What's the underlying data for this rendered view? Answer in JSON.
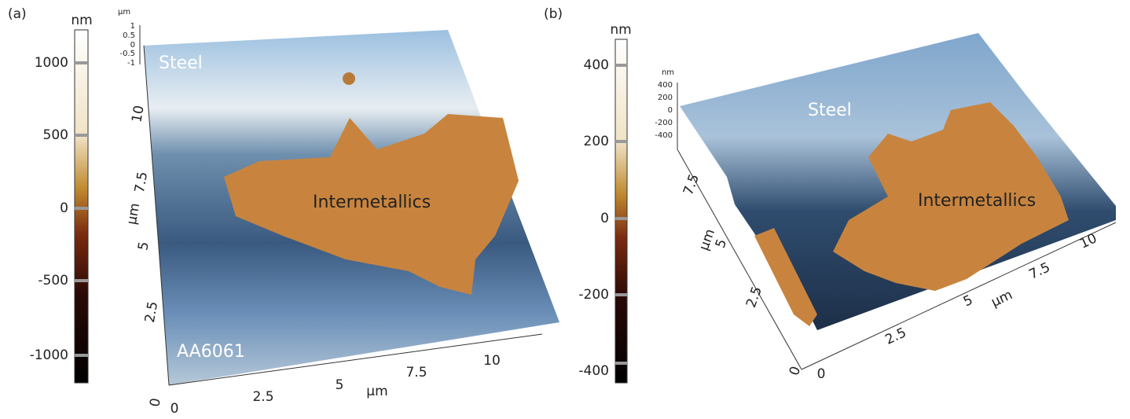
{
  "panels": [
    {
      "label": "(a)",
      "colorbar": {
        "unit": "nm",
        "ticks": [
          "1000",
          "500",
          "0",
          "-500",
          "-1000"
        ]
      },
      "z_axis": {
        "unit": "µm",
        "ticks": [
          "1",
          "0.5",
          "0",
          "-0.5",
          "-1"
        ]
      },
      "x_axis": {
        "unit": "µm",
        "ticks": [
          "0",
          "2.5",
          "5",
          "7.5",
          "10"
        ]
      },
      "y_axis": {
        "unit": "µm",
        "ticks": [
          "0",
          "2.5",
          "5",
          "7.5",
          "10"
        ]
      },
      "annotations": [
        "Steel",
        "Intermetallics",
        "AA6061"
      ]
    },
    {
      "label": "(b)",
      "colorbar": {
        "unit": "nm",
        "ticks": [
          "400",
          "200",
          "0",
          "-200",
          "-400"
        ]
      },
      "z_axis": {
        "unit": "nm",
        "ticks": [
          "400",
          "200",
          "0",
          "-200",
          "-400"
        ]
      },
      "x_axis": {
        "unit": "µm",
        "ticks": [
          "0",
          "2.5",
          "5",
          "7.5",
          "10"
        ]
      },
      "y_axis": {
        "unit": "µm",
        "ticks": [
          "2.5",
          "5",
          "7.5"
        ]
      },
      "annotations": [
        "Steel",
        "Intermetallics"
      ]
    }
  ]
}
